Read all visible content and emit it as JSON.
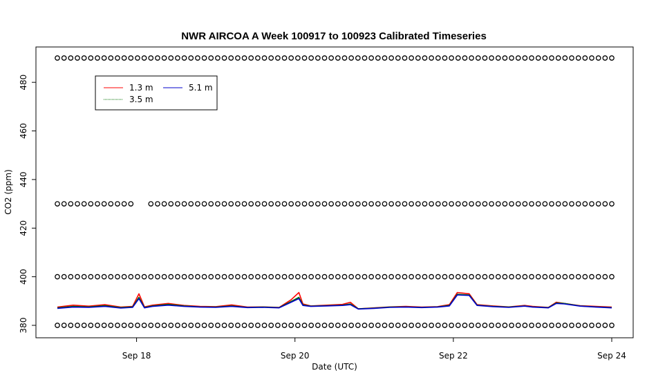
{
  "chart_data": {
    "type": "line",
    "title": "NWR AIRCOA A  Week 100917 to 100923  Calibrated Timeseries",
    "xlabel": "Date (UTC)",
    "ylabel": "CO2 (ppm)",
    "x_ticks": [
      "Sep 18",
      "Sep 20",
      "Sep 22",
      "Sep 24"
    ],
    "x_tick_days": [
      18,
      20,
      22,
      24
    ],
    "xlim": [
      17.0,
      24.0
    ],
    "y_ticks": [
      380,
      400,
      420,
      440,
      460,
      480
    ],
    "ylim": [
      377,
      492
    ],
    "grid": false,
    "legend_position": "top-left",
    "series": [
      {
        "name": "1.3 m",
        "color": "#ff0000",
        "x": [
          17.0,
          17.2,
          17.4,
          17.6,
          17.8,
          17.95,
          18.03,
          18.1,
          18.2,
          18.4,
          18.6,
          18.8,
          19.0,
          19.2,
          19.4,
          19.6,
          19.8,
          19.95,
          20.05,
          20.1,
          20.2,
          20.4,
          20.6,
          20.7,
          20.8,
          21.0,
          21.2,
          21.4,
          21.6,
          21.8,
          21.95,
          22.05,
          22.2,
          22.3,
          22.5,
          22.7,
          22.9,
          23.0,
          23.2,
          23.3,
          23.4,
          23.6,
          23.8,
          24.0
        ],
        "y": [
          387.5,
          388.3,
          387.9,
          388.5,
          387.5,
          387.8,
          393.0,
          387.6,
          388.3,
          389.0,
          388.2,
          387.8,
          387.7,
          388.4,
          387.5,
          387.6,
          387.4,
          390.5,
          393.5,
          388.8,
          388.0,
          388.3,
          388.6,
          389.5,
          386.8,
          387.2,
          387.6,
          387.8,
          387.5,
          387.7,
          388.5,
          393.5,
          393.0,
          388.5,
          388.0,
          387.6,
          388.2,
          387.8,
          387.4,
          389.5,
          389.0,
          388.1,
          387.8,
          387.5
        ]
      },
      {
        "name": "3.5 m",
        "color": "#007000",
        "x": [
          17.0,
          17.2,
          17.4,
          17.6,
          17.8,
          17.95,
          18.03,
          18.1,
          18.2,
          18.4,
          18.6,
          18.8,
          19.0,
          19.2,
          19.4,
          19.6,
          19.8,
          19.95,
          20.05,
          20.1,
          20.2,
          20.4,
          20.6,
          20.7,
          20.8,
          21.0,
          21.2,
          21.4,
          21.6,
          21.8,
          21.95,
          22.05,
          22.2,
          22.3,
          22.5,
          22.7,
          22.9,
          23.0,
          23.2,
          23.3,
          23.4,
          23.6,
          23.8,
          24.0
        ],
        "y": [
          387.2,
          387.8,
          387.6,
          388.1,
          387.3,
          387.6,
          391.5,
          387.4,
          388.0,
          388.6,
          388.0,
          387.6,
          387.5,
          388.0,
          387.4,
          387.5,
          387.3,
          389.8,
          391.5,
          388.4,
          387.9,
          388.1,
          388.3,
          388.8,
          386.8,
          387.1,
          387.5,
          387.6,
          387.4,
          387.6,
          388.2,
          392.8,
          392.5,
          388.3,
          387.8,
          387.5,
          388.0,
          387.6,
          387.3,
          389.2,
          389.0,
          388.0,
          387.6,
          387.3
        ]
      },
      {
        "name": "5.1 m",
        "color": "#0000cc",
        "x": [
          17.0,
          17.2,
          17.4,
          17.6,
          17.8,
          17.95,
          18.03,
          18.1,
          18.2,
          18.4,
          18.6,
          18.8,
          19.0,
          19.2,
          19.4,
          19.6,
          19.8,
          19.95,
          20.05,
          20.1,
          20.2,
          20.4,
          20.6,
          20.7,
          20.8,
          21.0,
          21.2,
          21.4,
          21.6,
          21.8,
          21.95,
          22.05,
          22.2,
          22.3,
          22.5,
          22.7,
          22.9,
          23.0,
          23.2,
          23.3,
          23.4,
          23.6,
          23.8,
          24.0
        ],
        "y": [
          387.0,
          387.5,
          387.4,
          387.8,
          387.1,
          387.4,
          391.0,
          387.2,
          387.8,
          388.3,
          387.8,
          387.5,
          387.4,
          387.8,
          387.3,
          387.4,
          387.2,
          389.5,
          391.0,
          388.2,
          387.8,
          388.0,
          388.2,
          388.5,
          386.7,
          387.0,
          387.4,
          387.5,
          387.3,
          387.5,
          388.0,
          392.5,
          392.3,
          388.2,
          387.7,
          387.4,
          387.9,
          387.5,
          387.2,
          389.0,
          388.8,
          387.9,
          387.5,
          387.2
        ]
      }
    ],
    "marker_series": [
      {
        "y": 490,
        "symbol": "o"
      },
      {
        "y": 430,
        "symbol": "o"
      },
      {
        "y": 400,
        "symbol": "o"
      },
      {
        "y": 380,
        "symbol": "o"
      }
    ]
  }
}
